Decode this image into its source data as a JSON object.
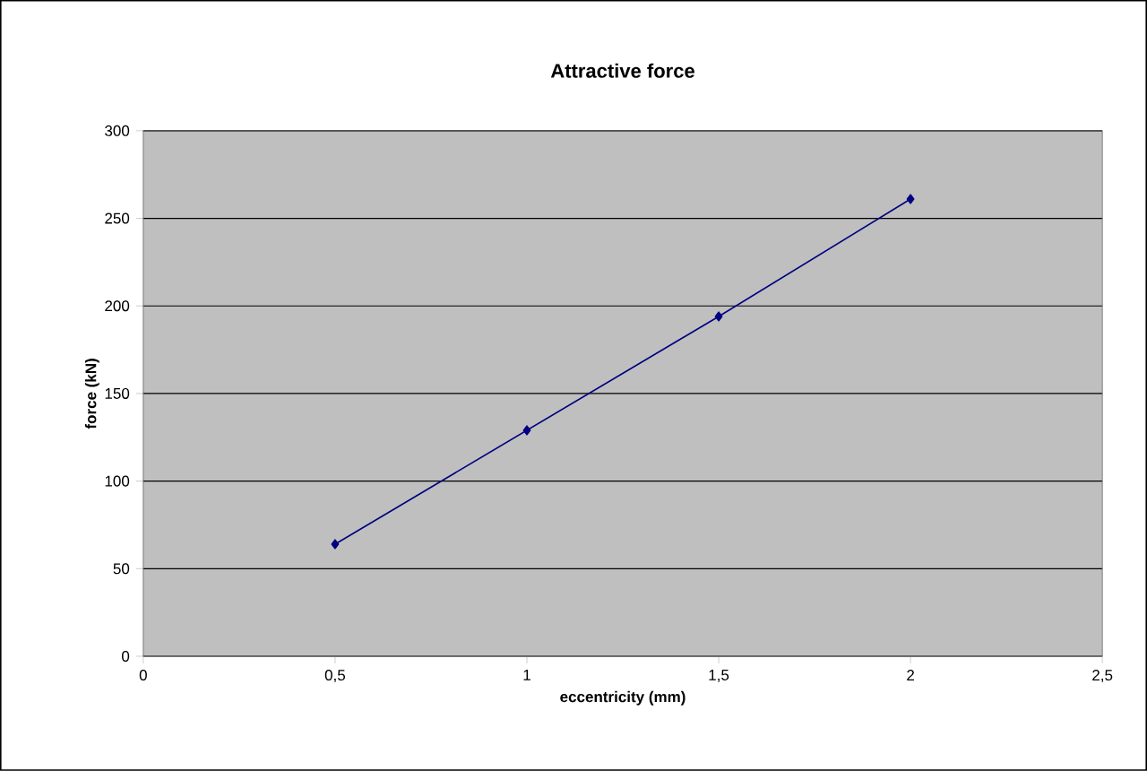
{
  "chart_data": {
    "type": "line",
    "title": "Attractive force",
    "xlabel": "eccentricity (mm)",
    "ylabel": "force (kN)",
    "x": [
      0.5,
      1,
      1.5,
      2
    ],
    "series": [
      {
        "color": "#000080",
        "values": [
          64,
          129,
          194,
          261
        ]
      }
    ],
    "xlim": [
      0,
      2.5
    ],
    "xticks": [
      0,
      {
        "value": 0.5,
        "label": "0,5"
      },
      1,
      {
        "value": 1.5,
        "label": "1,5"
      },
      2,
      {
        "value": 2.5,
        "label": "2,5"
      }
    ],
    "ylim": [
      0,
      300
    ],
    "yticks": [
      0,
      50,
      100,
      150,
      200,
      250,
      300
    ],
    "grid": "y",
    "marker": "diamond",
    "line_style": "solid"
  }
}
